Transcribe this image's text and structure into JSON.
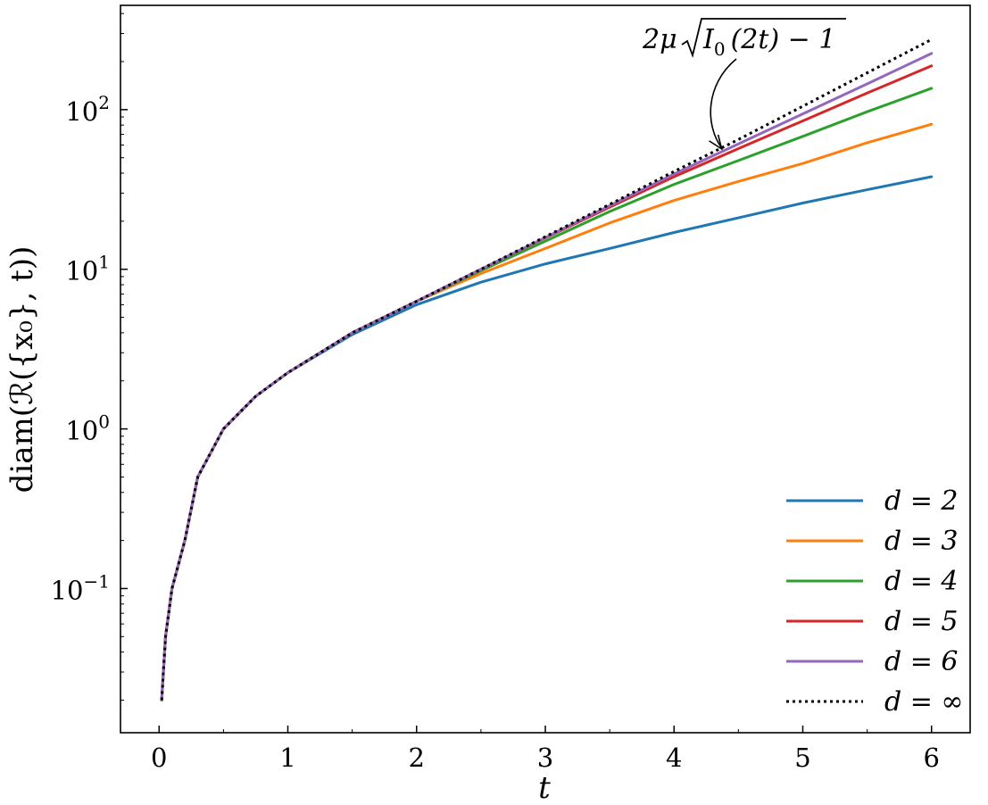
{
  "chart_data": {
    "type": "line",
    "xlabel": "t",
    "ylabel": "diam(ℛ({x₀}, t))",
    "xlim": [
      -0.3,
      6.3
    ],
    "ylim": [
      0.0125,
      450
    ],
    "yscale": "log",
    "grid": false,
    "legend_placement": "bottom-right",
    "x_ticks": [
      {
        "value": 0,
        "label": "0"
      },
      {
        "value": 1,
        "label": "1"
      },
      {
        "value": 2,
        "label": "2"
      },
      {
        "value": 3,
        "label": "3"
      },
      {
        "value": 4,
        "label": "4"
      },
      {
        "value": 5,
        "label": "5"
      },
      {
        "value": 6,
        "label": "6"
      }
    ],
    "y_ticks": [
      {
        "value": 0.1,
        "base": "10",
        "exp": "−1"
      },
      {
        "value": 1,
        "base": "10",
        "exp": "0"
      },
      {
        "value": 10,
        "base": "10",
        "exp": "1"
      },
      {
        "value": 100,
        "base": "10",
        "exp": "2"
      }
    ],
    "x": [
      0.02,
      0.05,
      0.1,
      0.2,
      0.3,
      0.5,
      0.75,
      1.0,
      1.5,
      2.0,
      2.5,
      3.0,
      3.5,
      4.0,
      4.5,
      5.0,
      5.5,
      6.0
    ],
    "series": [
      {
        "name": "d = 2",
        "color": "#1f77b4",
        "style": "solid",
        "values": [
          0.02,
          0.05,
          0.1,
          0.2,
          0.5,
          1.0,
          1.6,
          2.25,
          3.9,
          6.0,
          8.3,
          10.8,
          13.5,
          17.0,
          21.0,
          26.0,
          31.5,
          38.0
        ]
      },
      {
        "name": "d = 3",
        "color": "#ff7f0e",
        "style": "solid",
        "values": [
          0.02,
          0.05,
          0.1,
          0.2,
          0.5,
          1.0,
          1.6,
          2.25,
          4.0,
          6.3,
          9.4,
          13.5,
          19.5,
          27.0,
          35.5,
          46.0,
          62.0,
          81.0
        ]
      },
      {
        "name": "d = 4",
        "color": "#2ca02c",
        "style": "solid",
        "values": [
          0.02,
          0.05,
          0.1,
          0.2,
          0.5,
          1.0,
          1.6,
          2.25,
          4.0,
          6.3,
          9.8,
          15.0,
          23.0,
          34.0,
          48.0,
          68.0,
          97.0,
          136.0
        ]
      },
      {
        "name": "d = 5",
        "color": "#d62728",
        "style": "solid",
        "values": [
          0.02,
          0.05,
          0.1,
          0.2,
          0.5,
          1.0,
          1.6,
          2.25,
          4.0,
          6.3,
          10.0,
          15.7,
          24.5,
          38.0,
          57.0,
          85.0,
          127.0,
          188.0
        ]
      },
      {
        "name": "d = 6",
        "color": "#9467bd",
        "style": "solid",
        "values": [
          0.02,
          0.05,
          0.1,
          0.2,
          0.5,
          1.0,
          1.6,
          2.25,
          4.0,
          6.3,
          10.0,
          15.8,
          25.0,
          39.5,
          61.0,
          94.0,
          145.0,
          225.0
        ]
      },
      {
        "name": "d = ∞",
        "color": "#000000",
        "style": "dotted",
        "values": [
          0.02,
          0.05,
          0.1,
          0.2,
          0.5,
          1.0,
          1.6,
          2.25,
          4.0,
          6.3,
          10.0,
          16.0,
          25.5,
          41.0,
          65.0,
          105.0,
          170.0,
          275.0
        ]
      }
    ],
    "annotation": {
      "prefix": "2μ",
      "radicand_main": "I",
      "radicand_sub": "0",
      "radicand_rest": "(2t) − 1",
      "target_x": 4.37,
      "target_y": 56
    }
  }
}
